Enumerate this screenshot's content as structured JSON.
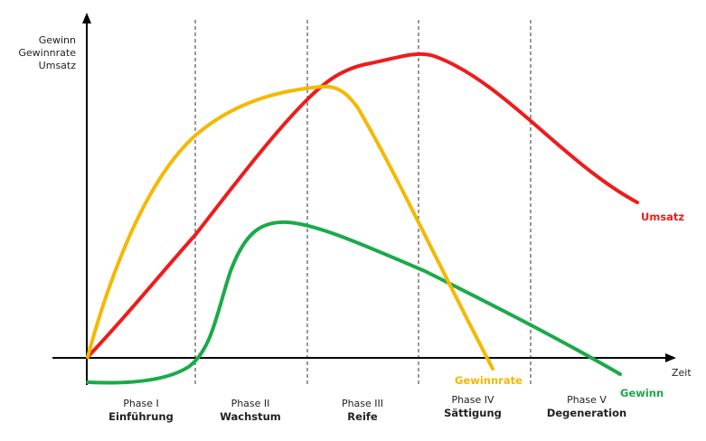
{
  "y_axis_labels": [
    "Gewinn",
    "Gewinnrate",
    "Umsatz"
  ],
  "x_axis_label": "Zeit",
  "phases": [
    {
      "num": "Phase I",
      "name": "Einführung"
    },
    {
      "num": "Phase II",
      "name": "Wachstum"
    },
    {
      "num": "Phase III",
      "name": "Reife"
    },
    {
      "num": "Phase IV",
      "name": "Sättigung"
    },
    {
      "num": "Phase V",
      "name": "Degeneration"
    }
  ],
  "curves": {
    "umsatz": {
      "label": "Umsatz",
      "color": "#ee1c1c"
    },
    "gewinnrate": {
      "label": "Gewinnrate",
      "color": "#f5b800"
    },
    "gewinn": {
      "label": "Gewinn",
      "color": "#1aaa4a"
    }
  }
}
